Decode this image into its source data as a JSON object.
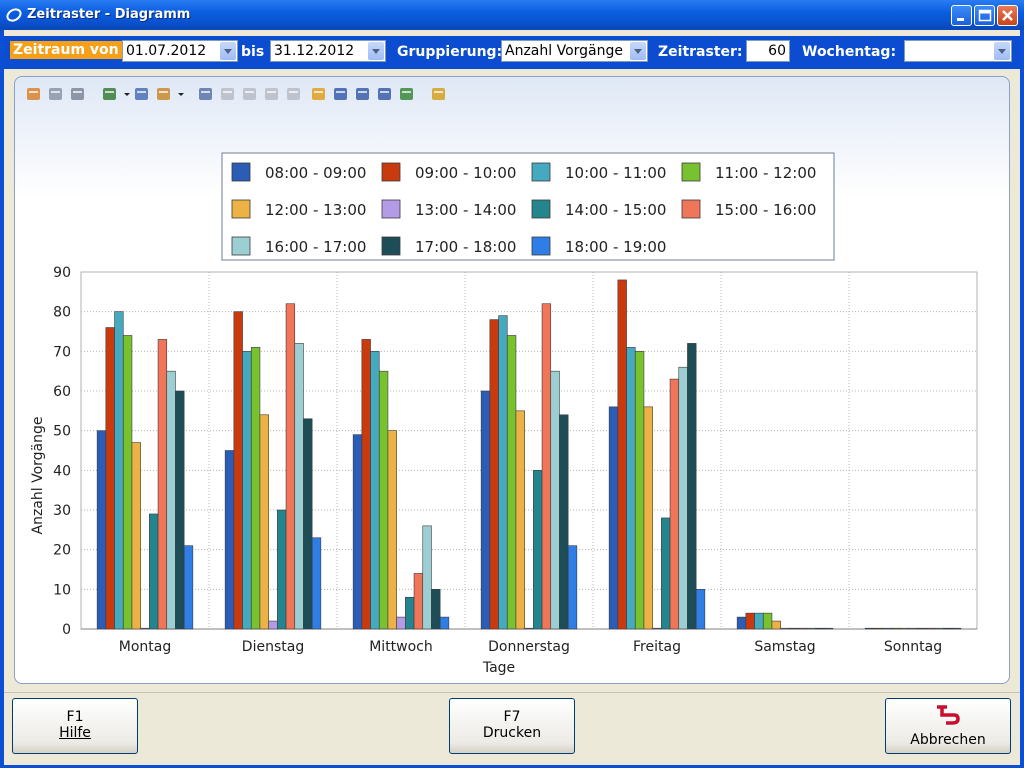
{
  "window": {
    "title": "Zeitraster - Diagramm"
  },
  "filters": {
    "from_label": "Zeitraum von",
    "from_value": "01.07.2012",
    "to_label": "bis",
    "to_value": "31.12.2012",
    "group_label": "Gruppierung:",
    "group_value": "Anzahl Vorgänge",
    "grid_label": "Zeitraster:",
    "grid_value": "60",
    "weekday_label": "Wochentag:",
    "weekday_value": ""
  },
  "toolbar_icons": [
    "users-icon",
    "copy-icon",
    "print-icon",
    "bar-chart-icon",
    "dropdown-arrow-icon",
    "chart-type-icon",
    "palette-icon",
    "dropdown-arrow-icon",
    "3d-icon",
    "move-icon",
    "rotate-icon",
    "rotate-axis-icon",
    "zoom-z-icon",
    "legend-box-icon",
    "labels-abc-icon",
    "data-table-icon",
    "grid-icon",
    "zoom-icon",
    "magic-wand-icon"
  ],
  "chart_data": {
    "type": "bar",
    "xlabel": "Tage",
    "ylabel": "Anzahl Vorgänge",
    "ylim": [
      0,
      90
    ],
    "yticks": [
      0,
      10,
      20,
      30,
      40,
      50,
      60,
      70,
      80,
      90
    ],
    "grid": true,
    "legend_position": "top",
    "categories": [
      "Montag",
      "Dienstag",
      "Mittwoch",
      "Donnerstag",
      "Freitag",
      "Samstag",
      "Sonntag"
    ],
    "series": [
      {
        "name": "08:00 - 09:00",
        "color": "#2b5db7",
        "values": [
          50,
          45,
          49,
          60,
          56,
          3,
          0
        ]
      },
      {
        "name": "09:00 - 10:00",
        "color": "#c93a0f",
        "values": [
          76,
          80,
          73,
          78,
          88,
          4,
          0
        ]
      },
      {
        "name": "10:00 - 11:00",
        "color": "#45a9bf",
        "values": [
          80,
          70,
          70,
          79,
          71,
          4,
          0
        ]
      },
      {
        "name": "11:00 - 12:00",
        "color": "#78c12f",
        "values": [
          74,
          71,
          65,
          74,
          70,
          4,
          0
        ]
      },
      {
        "name": "12:00 - 13:00",
        "color": "#edb245",
        "values": [
          47,
          54,
          50,
          55,
          56,
          2,
          0
        ]
      },
      {
        "name": "13:00 - 14:00",
        "color": "#b49be6",
        "values": [
          0,
          2,
          3,
          0,
          0,
          0,
          0
        ]
      },
      {
        "name": "14:00 - 15:00",
        "color": "#24858e",
        "values": [
          29,
          30,
          8,
          40,
          28,
          0,
          0
        ]
      },
      {
        "name": "15:00 - 16:00",
        "color": "#f0765a",
        "values": [
          73,
          82,
          14,
          82,
          63,
          0,
          0
        ]
      },
      {
        "name": "16:00 - 17:00",
        "color": "#9ccfd3",
        "values": [
          65,
          72,
          26,
          65,
          66,
          0,
          0
        ]
      },
      {
        "name": "17:00 - 18:00",
        "color": "#1d4e57",
        "values": [
          60,
          53,
          10,
          54,
          72,
          0,
          0
        ]
      },
      {
        "name": "18:00 - 19:00",
        "color": "#2f7de6",
        "values": [
          21,
          23,
          3,
          21,
          10,
          0,
          0
        ]
      }
    ]
  },
  "buttons": {
    "help_key": "F1",
    "help_label": "Hilfe",
    "print_key": "F7",
    "print_label": "Drucken",
    "cancel_label": "Abbrechen"
  }
}
